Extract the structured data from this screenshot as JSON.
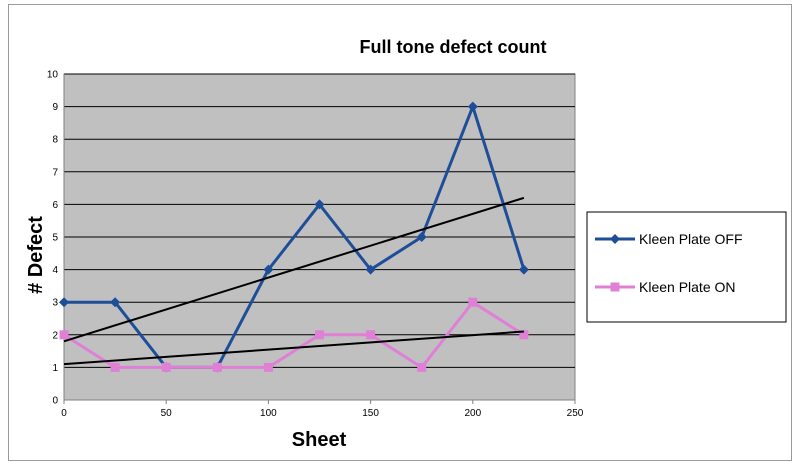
{
  "chart_data": {
    "type": "line",
    "title": "Full tone defect count",
    "xlabel": "Sheet",
    "ylabel": "# Defect",
    "xlim": [
      0,
      250
    ],
    "ylim": [
      0,
      10
    ],
    "x_ticks": [
      0,
      50,
      100,
      150,
      200,
      250
    ],
    "y_ticks": [
      0,
      1,
      2,
      3,
      4,
      5,
      6,
      7,
      8,
      9,
      10
    ],
    "grid": true,
    "legend_position": "right",
    "series": [
      {
        "name": "Kleen Plate OFF",
        "color": "#1f4e99",
        "marker": "diamond",
        "x": [
          0,
          25,
          50,
          75,
          100,
          125,
          150,
          175,
          200,
          225
        ],
        "y": [
          3,
          3,
          1,
          1,
          4,
          6,
          4,
          5,
          9,
          4
        ]
      },
      {
        "name": "Kleen Plate ON",
        "color": "#e07fd6",
        "marker": "square",
        "x": [
          0,
          25,
          50,
          75,
          100,
          125,
          150,
          175,
          200,
          225
        ],
        "y": [
          2,
          1,
          1,
          1,
          1,
          2,
          2,
          1,
          3,
          2
        ]
      }
    ],
    "trendlines": [
      {
        "series": "Kleen Plate OFF",
        "color": "#000000",
        "x": [
          0,
          225
        ],
        "y": [
          1.8,
          6.2
        ]
      },
      {
        "series": "Kleen Plate ON",
        "color": "#000000",
        "x": [
          0,
          225
        ],
        "y": [
          1.1,
          2.1
        ]
      }
    ]
  }
}
